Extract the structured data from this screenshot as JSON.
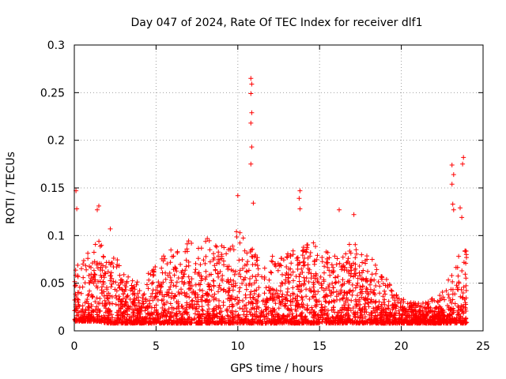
{
  "chart_data": {
    "type": "scatter",
    "title": "Day 047 of 2024, Rate Of TEC Index for receiver dlf1",
    "xlabel": "GPS time / hours",
    "ylabel": "ROTI / TECUs",
    "xlim": [
      0,
      25
    ],
    "ylim": [
      0,
      0.3
    ],
    "x_ticks": [
      0,
      5,
      10,
      15,
      20,
      25
    ],
    "x_tick_labels": [
      "0",
      "5",
      "10",
      "15",
      "20",
      "25"
    ],
    "y_ticks": [
      0,
      0.05,
      0.1,
      0.15,
      0.2,
      0.25,
      0.3
    ],
    "y_tick_labels": [
      "0",
      "0.05",
      "0.1",
      "0.15",
      "0.2",
      "0.25",
      "0.3"
    ],
    "grid": true,
    "marker": "+",
    "series_color": "#ff0000",
    "notable_points": [
      {
        "x": 0.1,
        "y": 0.147
      },
      {
        "x": 0.15,
        "y": 0.128
      },
      {
        "x": 1.4,
        "y": 0.127
      },
      {
        "x": 1.5,
        "y": 0.131
      },
      {
        "x": 2.2,
        "y": 0.107
      },
      {
        "x": 10.0,
        "y": 0.142
      },
      {
        "x": 10.8,
        "y": 0.265
      },
      {
        "x": 10.85,
        "y": 0.259
      },
      {
        "x": 10.8,
        "y": 0.249
      },
      {
        "x": 10.85,
        "y": 0.229
      },
      {
        "x": 10.8,
        "y": 0.218
      },
      {
        "x": 10.85,
        "y": 0.193
      },
      {
        "x": 10.8,
        "y": 0.175
      },
      {
        "x": 10.95,
        "y": 0.134
      },
      {
        "x": 13.8,
        "y": 0.147
      },
      {
        "x": 13.75,
        "y": 0.139
      },
      {
        "x": 13.8,
        "y": 0.128
      },
      {
        "x": 16.2,
        "y": 0.127
      },
      {
        "x": 17.1,
        "y": 0.122
      },
      {
        "x": 23.1,
        "y": 0.174
      },
      {
        "x": 23.2,
        "y": 0.164
      },
      {
        "x": 23.1,
        "y": 0.154
      },
      {
        "x": 23.15,
        "y": 0.133
      },
      {
        "x": 23.2,
        "y": 0.127
      },
      {
        "x": 23.8,
        "y": 0.182
      },
      {
        "x": 23.75,
        "y": 0.175
      },
      {
        "x": 23.6,
        "y": 0.129
      },
      {
        "x": 23.7,
        "y": 0.119
      },
      {
        "x": 23.9,
        "y": 0.084
      }
    ],
    "envelope": [
      {
        "x": 0,
        "min": 0.01,
        "max": 0.08
      },
      {
        "x": 0.5,
        "min": 0.01,
        "max": 0.075
      },
      {
        "x": 1,
        "min": 0.01,
        "max": 0.085
      },
      {
        "x": 1.5,
        "min": 0.01,
        "max": 0.1
      },
      {
        "x": 2,
        "min": 0.008,
        "max": 0.07
      },
      {
        "x": 2.5,
        "min": 0.008,
        "max": 0.08
      },
      {
        "x": 3,
        "min": 0.008,
        "max": 0.06
      },
      {
        "x": 3.5,
        "min": 0.008,
        "max": 0.055
      },
      {
        "x": 4,
        "min": 0.008,
        "max": 0.05
      },
      {
        "x": 4.5,
        "min": 0.008,
        "max": 0.06
      },
      {
        "x": 5,
        "min": 0.008,
        "max": 0.07
      },
      {
        "x": 5.5,
        "min": 0.008,
        "max": 0.08
      },
      {
        "x": 6,
        "min": 0.008,
        "max": 0.09
      },
      {
        "x": 6.5,
        "min": 0.008,
        "max": 0.08
      },
      {
        "x": 7,
        "min": 0.008,
        "max": 0.095
      },
      {
        "x": 7.5,
        "min": 0.008,
        "max": 0.09
      },
      {
        "x": 8,
        "min": 0.008,
        "max": 0.1
      },
      {
        "x": 8.5,
        "min": 0.008,
        "max": 0.09
      },
      {
        "x": 9,
        "min": 0.008,
        "max": 0.09
      },
      {
        "x": 9.5,
        "min": 0.008,
        "max": 0.085
      },
      {
        "x": 10,
        "min": 0.008,
        "max": 0.11
      },
      {
        "x": 10.5,
        "min": 0.008,
        "max": 0.1
      },
      {
        "x": 11,
        "min": 0.008,
        "max": 0.09
      },
      {
        "x": 11.5,
        "min": 0.008,
        "max": 0.07
      },
      {
        "x": 12,
        "min": 0.008,
        "max": 0.08
      },
      {
        "x": 12.5,
        "min": 0.008,
        "max": 0.075
      },
      {
        "x": 13,
        "min": 0.008,
        "max": 0.08
      },
      {
        "x": 13.5,
        "min": 0.008,
        "max": 0.09
      },
      {
        "x": 14,
        "min": 0.008,
        "max": 0.09
      },
      {
        "x": 14.5,
        "min": 0.008,
        "max": 0.1
      },
      {
        "x": 15,
        "min": 0.008,
        "max": 0.08
      },
      {
        "x": 15.5,
        "min": 0.008,
        "max": 0.085
      },
      {
        "x": 16,
        "min": 0.008,
        "max": 0.09
      },
      {
        "x": 16.5,
        "min": 0.008,
        "max": 0.08
      },
      {
        "x": 17,
        "min": 0.008,
        "max": 0.1
      },
      {
        "x": 17.5,
        "min": 0.008,
        "max": 0.08
      },
      {
        "x": 18,
        "min": 0.008,
        "max": 0.08
      },
      {
        "x": 18.5,
        "min": 0.008,
        "max": 0.07
      },
      {
        "x": 19,
        "min": 0.008,
        "max": 0.06
      },
      {
        "x": 19.5,
        "min": 0.008,
        "max": 0.04
      },
      {
        "x": 20,
        "min": 0.008,
        "max": 0.035
      },
      {
        "x": 20.5,
        "min": 0.008,
        "max": 0.03
      },
      {
        "x": 21,
        "min": 0.008,
        "max": 0.03
      },
      {
        "x": 21.5,
        "min": 0.008,
        "max": 0.03
      },
      {
        "x": 22,
        "min": 0.008,
        "max": 0.035
      },
      {
        "x": 22.5,
        "min": 0.008,
        "max": 0.04
      },
      {
        "x": 23,
        "min": 0.008,
        "max": 0.06
      },
      {
        "x": 23.5,
        "min": 0.008,
        "max": 0.08
      },
      {
        "x": 24,
        "min": 0.008,
        "max": 0.09
      }
    ],
    "density_note": "dense cloud of + markers mostly between 0.01 and 0.04 TECU across 0-24 h"
  }
}
